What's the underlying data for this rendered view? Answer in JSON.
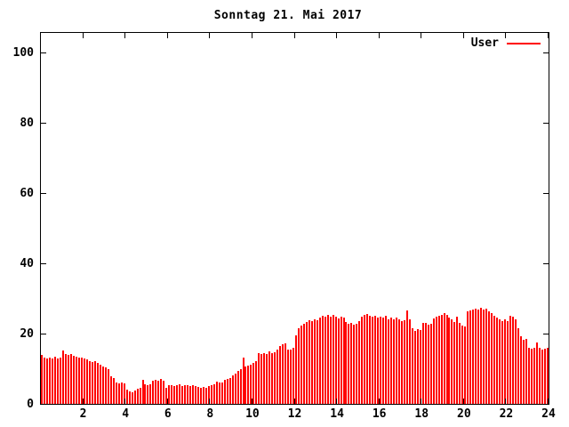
{
  "title": "Sonntag 21. Mai 2017",
  "colors": {
    "bar": "#ff0000",
    "frame": "#000000",
    "background": "#ffffff",
    "text": "#000000"
  },
  "chart_data": {
    "type": "bar",
    "title": "Sonntag 21. Mai 2017",
    "xlabel": "",
    "ylabel": "",
    "xlim": [
      0,
      24
    ],
    "ylim": [
      0,
      106
    ],
    "xticks": [
      2,
      4,
      6,
      8,
      10,
      12,
      14,
      16,
      18,
      20,
      22,
      24
    ],
    "yticks": [
      0,
      20,
      40,
      60,
      80,
      100
    ],
    "grid": false,
    "legend_position": "top-right-inside",
    "legend": [
      {
        "name": "User",
        "color": "#ff0000"
      }
    ],
    "x_start": 0,
    "x_step": 0.125,
    "series": [
      {
        "name": "User",
        "values": [
          14.0,
          13.2,
          12.9,
          13.3,
          13.0,
          13.4,
          12.9,
          13.1,
          15.2,
          14.3,
          13.9,
          14.1,
          13.8,
          13.4,
          13.1,
          13.3,
          12.9,
          12.6,
          12.2,
          11.9,
          12.1,
          11.6,
          11.2,
          10.7,
          10.3,
          9.8,
          7.9,
          7.4,
          6.2,
          5.9,
          6.1,
          5.8,
          4.1,
          3.6,
          3.4,
          3.9,
          4.4,
          4.7,
          6.8,
          5.5,
          5.3,
          5.6,
          6.6,
          6.9,
          6.7,
          7.0,
          6.6,
          4.6,
          5.3,
          5.4,
          5.2,
          5.3,
          5.5,
          5.2,
          5.4,
          5.3,
          5.1,
          5.4,
          5.2,
          4.8,
          4.6,
          4.9,
          4.7,
          5.2,
          5.4,
          5.6,
          6.4,
          6.0,
          6.2,
          6.8,
          7.1,
          7.3,
          8.2,
          8.6,
          9.5,
          9.9,
          13.2,
          10.6,
          10.9,
          11.1,
          11.8,
          12.3,
          14.4,
          14.1,
          14.6,
          14.3,
          15.0,
          14.4,
          14.7,
          15.4,
          16.4,
          16.9,
          17.2,
          15.6,
          15.4,
          16.1,
          19.6,
          21.5,
          22.3,
          22.8,
          23.4,
          23.9,
          23.6,
          24.1,
          23.8,
          24.6,
          25.2,
          24.8,
          25.4,
          25.0,
          25.5,
          24.9,
          24.4,
          24.9,
          24.6,
          23.4,
          22.8,
          23.2,
          22.6,
          22.9,
          23.5,
          24.9,
          25.4,
          25.6,
          25.2,
          24.9,
          25.2,
          24.6,
          25.0,
          24.7,
          25.1,
          24.2,
          24.6,
          24.1,
          24.5,
          24.0,
          23.6,
          23.9,
          26.6,
          24.1,
          21.6,
          20.9,
          21.3,
          21.0,
          23.2,
          23.0,
          22.6,
          22.8,
          24.4,
          24.8,
          25.1,
          25.5,
          25.8,
          25.3,
          24.6,
          24.2,
          23.4,
          24.9,
          23.2,
          22.4,
          22.1,
          26.3,
          26.6,
          26.9,
          27.2,
          26.8,
          27.3,
          26.9,
          27.1,
          26.4,
          26.0,
          25.1,
          24.6,
          24.2,
          23.6,
          24.0,
          23.7,
          25.1,
          24.8,
          24.2,
          21.5,
          19.4,
          18.2,
          18.5,
          16.1,
          15.8,
          16.0,
          17.5,
          15.9,
          15.6,
          15.8,
          16.0
        ]
      }
    ]
  }
}
